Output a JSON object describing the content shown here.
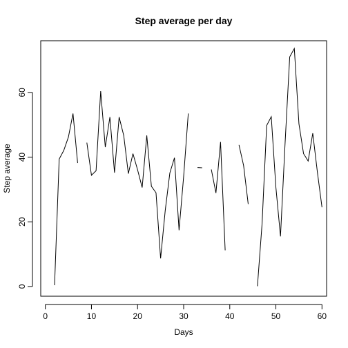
{
  "chart_data": {
    "type": "line",
    "title": "Step average per day",
    "xlabel": "Days",
    "ylabel": "Step average",
    "xlim": [
      -1,
      61
    ],
    "ylim": [
      -3,
      76
    ],
    "x_ticks": [
      0,
      10,
      20,
      30,
      40,
      50,
      60
    ],
    "y_ticks": [
      0,
      20,
      40,
      60
    ],
    "x_tick_labels": [
      "0",
      "10",
      "20",
      "30",
      "40",
      "50",
      "60"
    ],
    "y_tick_labels": [
      "0",
      "20",
      "40",
      "60"
    ],
    "grid": false,
    "legend": "none",
    "line_color": "#000000",
    "series": [
      {
        "x": [
          1,
          2,
          3,
          4,
          5,
          6,
          7,
          8,
          9,
          10,
          11,
          12,
          13,
          14,
          15,
          16,
          17,
          18,
          19,
          20,
          21,
          22,
          23,
          24,
          25,
          26,
          27,
          28,
          29,
          30,
          31,
          32,
          33,
          34,
          35,
          36,
          37,
          38,
          39,
          40,
          41,
          42,
          43,
          44,
          45,
          46,
          47,
          48,
          49,
          50,
          51,
          52,
          53,
          54,
          55,
          56,
          57,
          58,
          59,
          60,
          61
        ],
        "values": [
          null,
          0.4,
          39.4,
          42.1,
          46.2,
          53.5,
          38.2,
          null,
          44.5,
          34.4,
          35.8,
          60.4,
          43.1,
          52.4,
          35.2,
          52.4,
          46.7,
          34.9,
          41.1,
          36.1,
          30.6,
          46.7,
          31.0,
          29.0,
          8.7,
          23.5,
          35.1,
          39.8,
          17.4,
          34.1,
          53.5,
          null,
          36.8,
          36.7,
          null,
          36.2,
          28.9,
          44.7,
          11.2,
          null,
          null,
          43.8,
          37.4,
          25.5,
          null,
          0.1,
          19.3,
          49.8,
          52.5,
          30.7,
          15.5,
          44.4,
          71.0,
          73.6,
          50.3,
          41.1,
          38.8,
          47.4,
          35.4,
          24.5,
          null
        ]
      }
    ]
  }
}
